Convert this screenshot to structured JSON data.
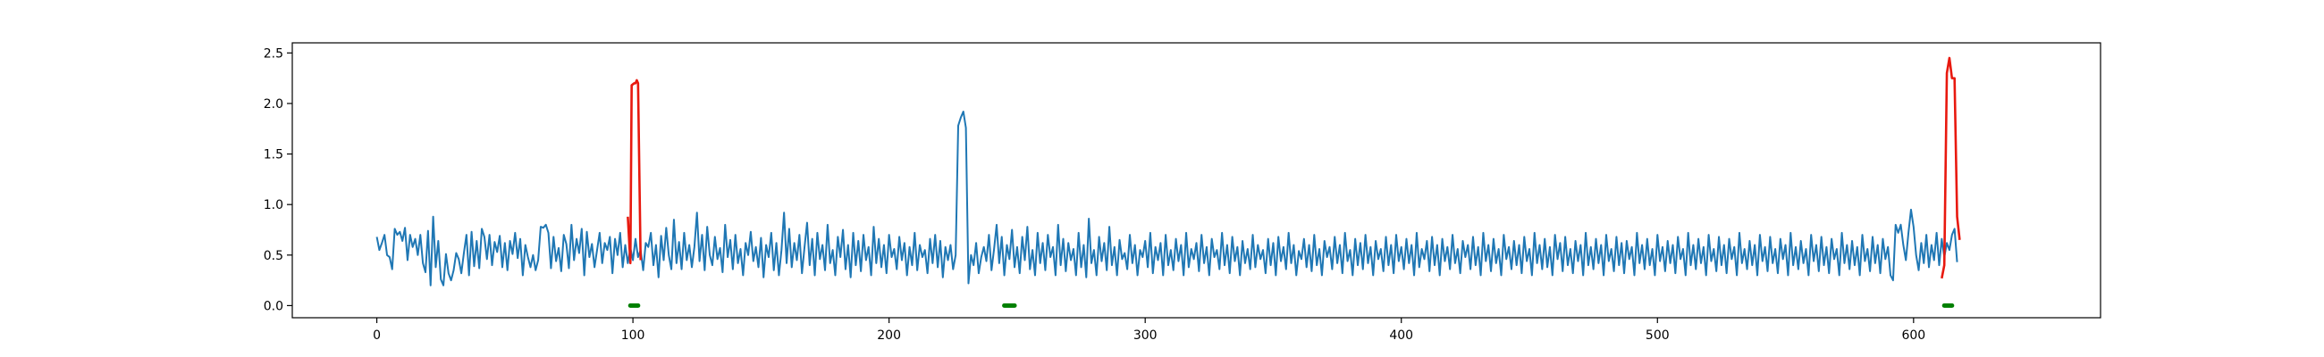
{
  "chart_data": {
    "type": "line",
    "title": "",
    "xlabel": "",
    "ylabel": "",
    "xlim": [
      -33,
      673
    ],
    "ylim": [
      -0.12,
      2.6
    ],
    "grid": false,
    "x_ticks": [
      0,
      100,
      200,
      300,
      400,
      500,
      600
    ],
    "y_ticks": [
      0.0,
      0.5,
      1.0,
      1.5,
      2.0,
      2.5
    ],
    "x_tick_labels": [
      "0",
      "100",
      "200",
      "300",
      "400",
      "500",
      "600"
    ],
    "y_tick_labels": [
      "0.0",
      "0.5",
      "1.0",
      "1.5",
      "2.0",
      "2.5"
    ],
    "colors": {
      "signal": "#1f77b4",
      "highlight": "#e8190f",
      "marker": "#008000"
    },
    "series": [
      {
        "role": "signal",
        "x_start": 0,
        "x_step": 1,
        "values": [
          0.68,
          0.55,
          0.62,
          0.7,
          0.5,
          0.48,
          0.36,
          0.76,
          0.7,
          0.73,
          0.64,
          0.77,
          0.45,
          0.7,
          0.58,
          0.66,
          0.5,
          0.7,
          0.42,
          0.33,
          0.74,
          0.2,
          0.88,
          0.38,
          0.64,
          0.26,
          0.2,
          0.51,
          0.32,
          0.25,
          0.35,
          0.52,
          0.46,
          0.32,
          0.52,
          0.7,
          0.3,
          0.73,
          0.39,
          0.64,
          0.37,
          0.76,
          0.68,
          0.46,
          0.7,
          0.4,
          0.63,
          0.53,
          0.69,
          0.38,
          0.62,
          0.35,
          0.64,
          0.51,
          0.72,
          0.47,
          0.66,
          0.3,
          0.6,
          0.48,
          0.38,
          0.5,
          0.35,
          0.45,
          0.78,
          0.77,
          0.8,
          0.72,
          0.37,
          0.68,
          0.44,
          0.57,
          0.34,
          0.7,
          0.61,
          0.37,
          0.8,
          0.45,
          0.66,
          0.52,
          0.76,
          0.3,
          0.73,
          0.48,
          0.61,
          0.38,
          0.55,
          0.72,
          0.42,
          0.62,
          0.55,
          0.68,
          0.32,
          0.66,
          0.5,
          0.72,
          0.38,
          0.6,
          0.42,
          0.57,
          0.45,
          0.66,
          0.48,
          0.55,
          0.35,
          0.62,
          0.58,
          0.72,
          0.4,
          0.6,
          0.28,
          0.69,
          0.45,
          0.77,
          0.5,
          0.36,
          0.85,
          0.42,
          0.63,
          0.36,
          0.72,
          0.45,
          0.6,
          0.38,
          0.58,
          0.92,
          0.44,
          0.7,
          0.35,
          0.78,
          0.5,
          0.4,
          0.68,
          0.46,
          0.57,
          0.33,
          0.8,
          0.48,
          0.65,
          0.36,
          0.7,
          0.42,
          0.56,
          0.3,
          0.62,
          0.5,
          0.73,
          0.44,
          0.58,
          0.38,
          0.67,
          0.28,
          0.6,
          0.48,
          0.72,
          0.35,
          0.62,
          0.3,
          0.55,
          0.92,
          0.42,
          0.76,
          0.38,
          0.62,
          0.45,
          0.7,
          0.32,
          0.58,
          0.82,
          0.4,
          0.66,
          0.3,
          0.72,
          0.46,
          0.6,
          0.35,
          0.8,
          0.42,
          0.55,
          0.3,
          0.68,
          0.48,
          0.75,
          0.36,
          0.6,
          0.28,
          0.72,
          0.4,
          0.64,
          0.34,
          0.7,
          0.45,
          0.58,
          0.3,
          0.78,
          0.42,
          0.66,
          0.38,
          0.6,
          0.32,
          0.7,
          0.48,
          0.56,
          0.36,
          0.68,
          0.45,
          0.62,
          0.3,
          0.58,
          0.4,
          0.72,
          0.35,
          0.6,
          0.48,
          0.55,
          0.32,
          0.66,
          0.42,
          0.7,
          0.38,
          0.64,
          0.28,
          0.58,
          0.45,
          0.6,
          0.36,
          0.5,
          1.78,
          1.86,
          1.92,
          1.76,
          0.22,
          0.5,
          0.4,
          0.62,
          0.32,
          0.48,
          0.58,
          0.44,
          0.7,
          0.35,
          0.56,
          0.8,
          0.42,
          0.68,
          0.3,
          0.6,
          0.46,
          0.75,
          0.38,
          0.58,
          0.32,
          0.68,
          0.45,
          0.78,
          0.36,
          0.55,
          0.3,
          0.72,
          0.42,
          0.62,
          0.35,
          0.7,
          0.48,
          0.58,
          0.3,
          0.8,
          0.4,
          0.66,
          0.34,
          0.62,
          0.45,
          0.56,
          0.3,
          0.72,
          0.38,
          0.6,
          0.28,
          0.86,
          0.42,
          0.55,
          0.3,
          0.68,
          0.44,
          0.62,
          0.35,
          0.78,
          0.4,
          0.58,
          0.3,
          0.65,
          0.46,
          0.52,
          0.36,
          0.7,
          0.42,
          0.6,
          0.3,
          0.55,
          0.48,
          0.64,
          0.38,
          0.72,
          0.32,
          0.58,
          0.45,
          0.62,
          0.3,
          0.7,
          0.4,
          0.55,
          0.35,
          0.66,
          0.44,
          0.6,
          0.3,
          0.72,
          0.38,
          0.56,
          0.46,
          0.62,
          0.34,
          0.7,
          0.42,
          0.58,
          0.3,
          0.66,
          0.48,
          0.55,
          0.36,
          0.72,
          0.4,
          0.6,
          0.32,
          0.68,
          0.44,
          0.58,
          0.3,
          0.64,
          0.42,
          0.56,
          0.36,
          0.7,
          0.38,
          0.6,
          0.46,
          0.55,
          0.32,
          0.66,
          0.4,
          0.62,
          0.3,
          0.68,
          0.44,
          0.58,
          0.36,
          0.72,
          0.42,
          0.6,
          0.3,
          0.54,
          0.46,
          0.66,
          0.38,
          0.6,
          0.34,
          0.7,
          0.4,
          0.56,
          0.3,
          0.64,
          0.48,
          0.58,
          0.36,
          0.68,
          0.42,
          0.6,
          0.32,
          0.72,
          0.44,
          0.55,
          0.3,
          0.66,
          0.4,
          0.62,
          0.36,
          0.7,
          0.42,
          0.58,
          0.3,
          0.64,
          0.46,
          0.56,
          0.34,
          0.68,
          0.4,
          0.6,
          0.32,
          0.7,
          0.44,
          0.58,
          0.36,
          0.66,
          0.42,
          0.6,
          0.3,
          0.72,
          0.38,
          0.56,
          0.46,
          0.64,
          0.34,
          0.68,
          0.4,
          0.6,
          0.3,
          0.66,
          0.44,
          0.58,
          0.36,
          0.7,
          0.42,
          0.56,
          0.32,
          0.64,
          0.48,
          0.6,
          0.36,
          0.68,
          0.4,
          0.58,
          0.3,
          0.72,
          0.44,
          0.6,
          0.34,
          0.66,
          0.42,
          0.56,
          0.3,
          0.7,
          0.46,
          0.58,
          0.36,
          0.64,
          0.4,
          0.6,
          0.32,
          0.68,
          0.44,
          0.56,
          0.3,
          0.72,
          0.42,
          0.6,
          0.36,
          0.66,
          0.38,
          0.58,
          0.3,
          0.7,
          0.46,
          0.62,
          0.34,
          0.68,
          0.4,
          0.56,
          0.32,
          0.64,
          0.44,
          0.6,
          0.3,
          0.72,
          0.4,
          0.58,
          0.36,
          0.66,
          0.42,
          0.6,
          0.3,
          0.7,
          0.44,
          0.56,
          0.34,
          0.68,
          0.4,
          0.62,
          0.32,
          0.64,
          0.46,
          0.58,
          0.3,
          0.72,
          0.42,
          0.6,
          0.36,
          0.66,
          0.4,
          0.56,
          0.3,
          0.7,
          0.44,
          0.58,
          0.34,
          0.64,
          0.42,
          0.6,
          0.32,
          0.68,
          0.46,
          0.56,
          0.3,
          0.72,
          0.4,
          0.6,
          0.36,
          0.66,
          0.42,
          0.58,
          0.3,
          0.7,
          0.44,
          0.56,
          0.34,
          0.68,
          0.4,
          0.6,
          0.32,
          0.66,
          0.46,
          0.58,
          0.3,
          0.72,
          0.42,
          0.56,
          0.36,
          0.64,
          0.4,
          0.6,
          0.3,
          0.7,
          0.44,
          0.58,
          0.34,
          0.68,
          0.42,
          0.56,
          0.32,
          0.66,
          0.46,
          0.6,
          0.3,
          0.72,
          0.4,
          0.58,
          0.36,
          0.64,
          0.42,
          0.56,
          0.3,
          0.7,
          0.44,
          0.6,
          0.34,
          0.68,
          0.4,
          0.58,
          0.32,
          0.66,
          0.46,
          0.56,
          0.3,
          0.72,
          0.42,
          0.6,
          0.36,
          0.64,
          0.4,
          0.58,
          0.3,
          0.7,
          0.44,
          0.56,
          0.34,
          0.68,
          0.42,
          0.6,
          0.32,
          0.66,
          0.46,
          0.58,
          0.3,
          0.25,
          0.8,
          0.72,
          0.8,
          0.6,
          0.45,
          0.72,
          0.95,
          0.78,
          0.5,
          0.35,
          0.62,
          0.42,
          0.7,
          0.38,
          0.6,
          0.45,
          0.72,
          0.4,
          0.66,
          0.48,
          0.62,
          0.55,
          0.7,
          0.76,
          0.43
        ]
      },
      {
        "role": "highlight",
        "name": "",
        "points": [
          [
            98,
            0.88
          ],
          [
            99,
            0.42
          ],
          [
            99.5,
            2.18
          ],
          [
            100.5,
            2.2
          ],
          [
            101,
            2.2
          ],
          [
            101.5,
            2.23
          ],
          [
            102,
            2.2
          ],
          [
            103,
            0.45
          ]
        ]
      },
      {
        "role": "highlight",
        "name": "",
        "points": [
          [
            611,
            0.27
          ],
          [
            612,
            0.4
          ],
          [
            613,
            2.3
          ],
          [
            614,
            2.45
          ],
          [
            615,
            2.25
          ],
          [
            616,
            2.25
          ],
          [
            617,
            0.88
          ],
          [
            618,
            0.65
          ]
        ]
      }
    ],
    "markers": [
      {
        "x_start": 99,
        "x_end": 102,
        "y": 0.0
      },
      {
        "x_start": 245,
        "x_end": 249,
        "y": 0.0
      },
      {
        "x_start": 612,
        "x_end": 615,
        "y": 0.0
      }
    ]
  }
}
